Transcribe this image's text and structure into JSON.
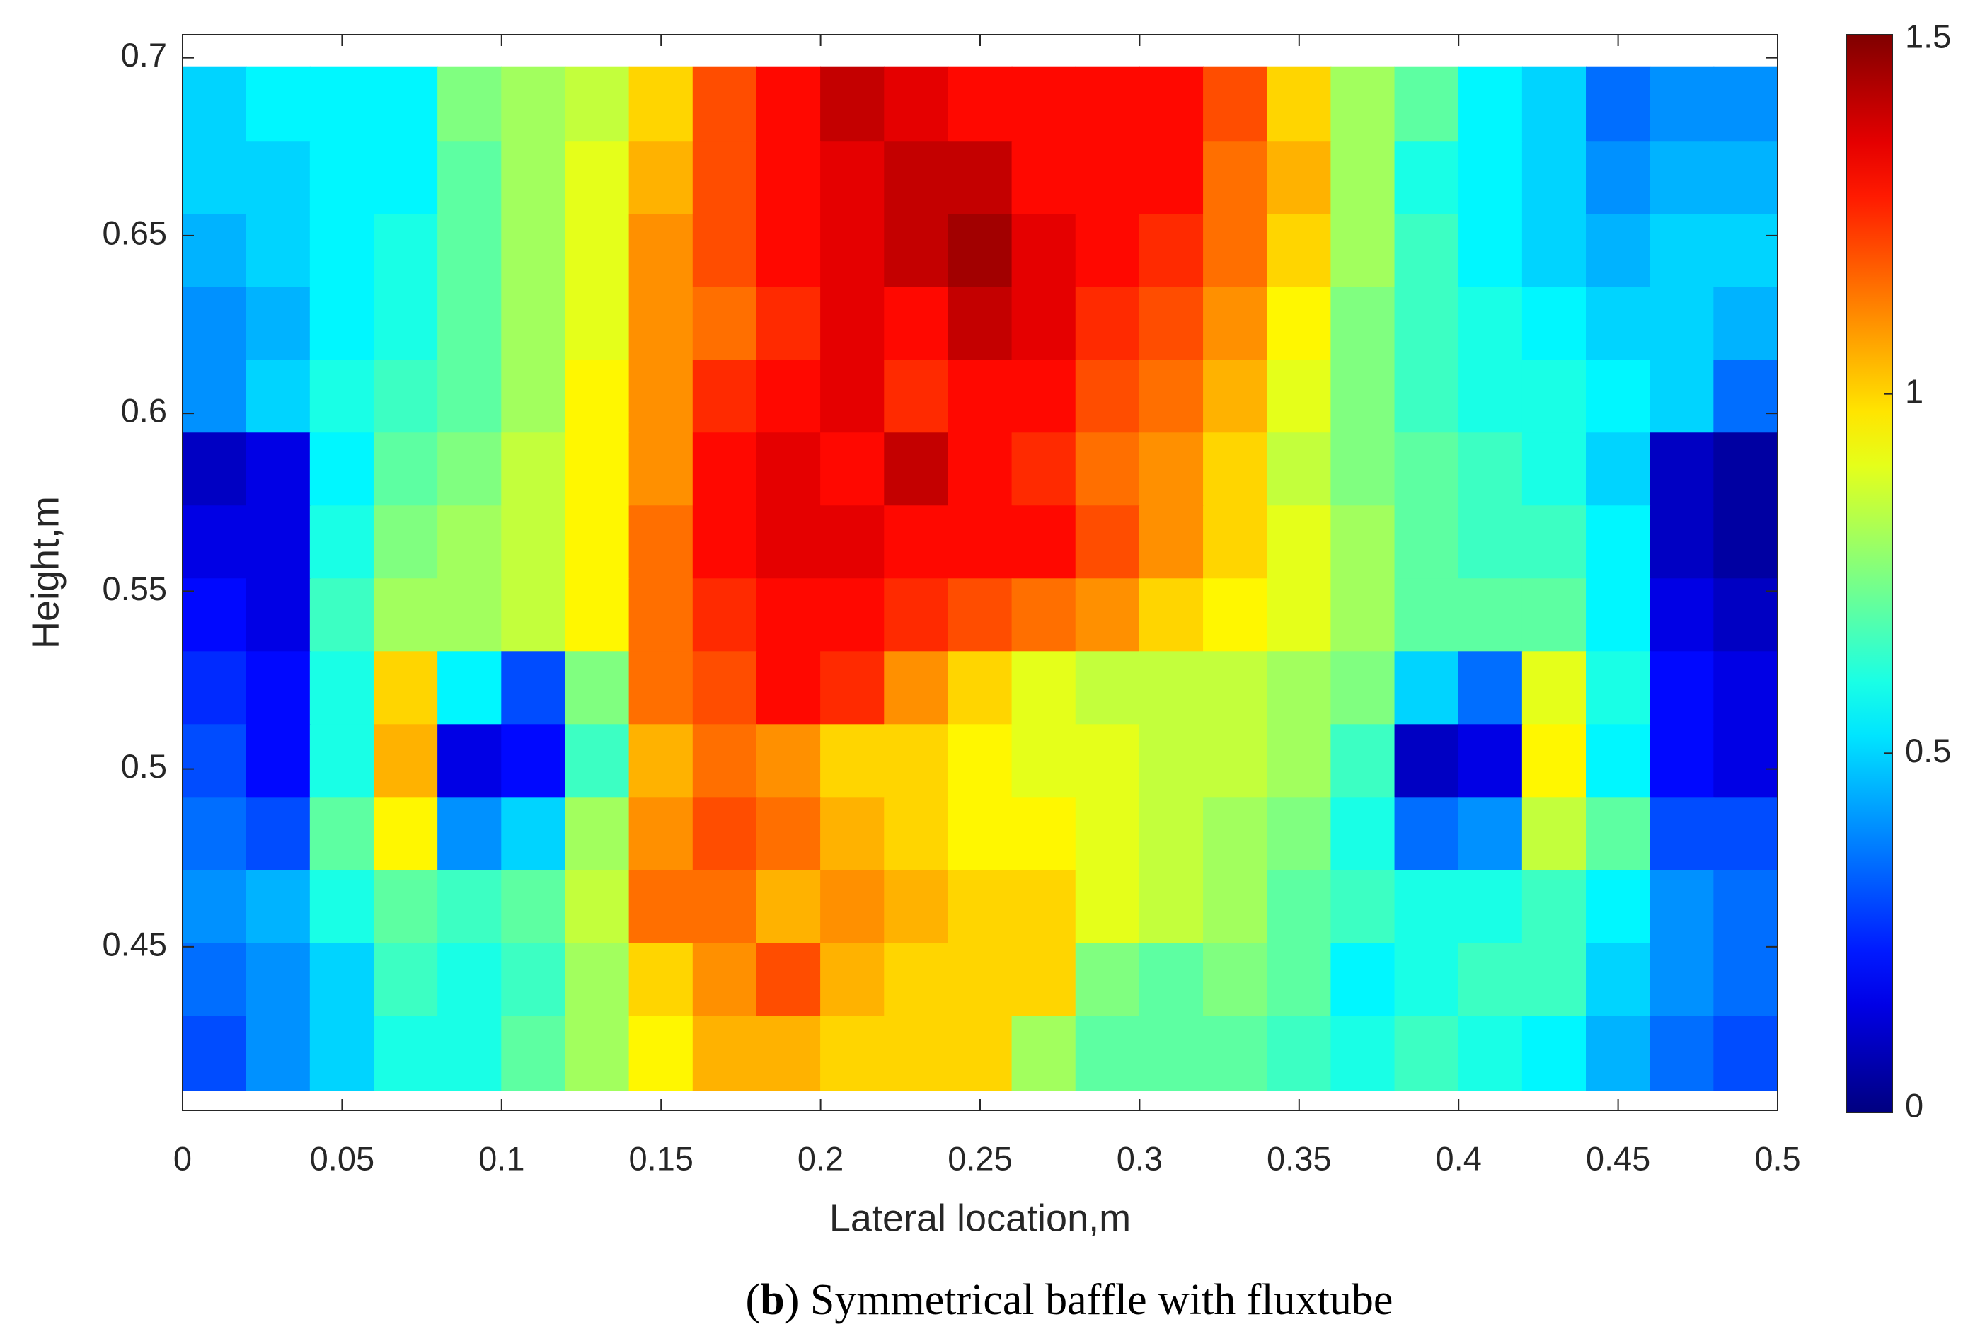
{
  "chart_data": {
    "type": "contour",
    "caption": [
      "(",
      "b",
      ") Symmetrical baffle with fluxtube"
    ],
    "x_label": "Lateral location,m",
    "y_label": "Height,m",
    "xlim": [
      0,
      0.5
    ],
    "ylim": [
      0.404,
      0.7065
    ],
    "xticks": [
      0,
      0.05,
      0.1,
      0.15,
      0.2,
      0.25,
      0.3,
      0.35,
      0.4,
      0.45,
      0.5
    ],
    "yticks": [
      0.45,
      0.5,
      0.55,
      0.6,
      0.65,
      0.7
    ],
    "colormap": "jet",
    "clim": [
      0,
      1.5
    ],
    "cticks": [
      0,
      0.5,
      1,
      1.5
    ],
    "x": [
      0.01,
      0.03,
      0.05,
      0.07,
      0.09,
      0.11,
      0.13,
      0.15,
      0.17,
      0.19,
      0.21,
      0.23,
      0.25,
      0.27,
      0.29,
      0.31,
      0.33,
      0.35,
      0.37,
      0.39,
      0.41,
      0.43,
      0.45,
      0.47,
      0.49
    ],
    "y": [
      0.687,
      0.666,
      0.646,
      0.625,
      0.605,
      0.584,
      0.564,
      0.543,
      0.523,
      0.502,
      0.482,
      0.461,
      0.441,
      0.42
    ],
    "z": [
      [
        0.5,
        0.55,
        0.55,
        0.55,
        0.75,
        0.8,
        0.85,
        1.0,
        1.2,
        1.3,
        1.4,
        1.35,
        1.3,
        1.3,
        1.3,
        1.3,
        1.2,
        1.0,
        0.8,
        0.7,
        0.55,
        0.5,
        0.35,
        0.4,
        0.4
      ],
      [
        0.5,
        0.5,
        0.55,
        0.55,
        0.7,
        0.8,
        0.9,
        1.05,
        1.2,
        1.3,
        1.35,
        1.4,
        1.4,
        1.3,
        1.3,
        1.3,
        1.15,
        1.05,
        0.8,
        0.6,
        0.55,
        0.5,
        0.4,
        0.45,
        0.45
      ],
      [
        0.45,
        0.5,
        0.55,
        0.6,
        0.7,
        0.8,
        0.9,
        1.1,
        1.2,
        1.3,
        1.35,
        1.4,
        1.45,
        1.35,
        1.3,
        1.25,
        1.15,
        1.0,
        0.8,
        0.65,
        0.55,
        0.5,
        0.45,
        0.5,
        0.5
      ],
      [
        0.4,
        0.45,
        0.55,
        0.6,
        0.7,
        0.8,
        0.9,
        1.1,
        1.15,
        1.25,
        1.35,
        1.3,
        1.4,
        1.35,
        1.25,
        1.2,
        1.1,
        0.95,
        0.75,
        0.65,
        0.6,
        0.55,
        0.5,
        0.5,
        0.45
      ],
      [
        0.4,
        0.5,
        0.6,
        0.65,
        0.7,
        0.8,
        0.95,
        1.1,
        1.25,
        1.3,
        1.35,
        1.25,
        1.3,
        1.3,
        1.2,
        1.15,
        1.05,
        0.9,
        0.75,
        0.65,
        0.6,
        0.6,
        0.55,
        0.5,
        0.35
      ],
      [
        0.1,
        0.15,
        0.55,
        0.7,
        0.75,
        0.85,
        0.95,
        1.1,
        1.3,
        1.35,
        1.3,
        1.4,
        1.3,
        1.25,
        1.15,
        1.1,
        1.0,
        0.85,
        0.75,
        0.7,
        0.65,
        0.6,
        0.5,
        0.1,
        0.05
      ],
      [
        0.15,
        0.15,
        0.6,
        0.75,
        0.8,
        0.85,
        0.95,
        1.15,
        1.3,
        1.35,
        1.35,
        1.3,
        1.3,
        1.3,
        1.2,
        1.1,
        1.0,
        0.9,
        0.8,
        0.7,
        0.65,
        0.65,
        0.55,
        0.1,
        0.05
      ],
      [
        0.2,
        0.15,
        0.65,
        0.8,
        0.8,
        0.85,
        0.95,
        1.15,
        1.25,
        1.3,
        1.3,
        1.25,
        1.2,
        1.15,
        1.1,
        1.0,
        0.95,
        0.9,
        0.8,
        0.7,
        0.7,
        0.7,
        0.55,
        0.15,
        0.1
      ],
      [
        0.25,
        0.2,
        0.6,
        1.0,
        0.55,
        0.3,
        0.75,
        1.15,
        1.2,
        1.3,
        1.25,
        1.1,
        1.0,
        0.9,
        0.85,
        0.85,
        0.85,
        0.8,
        0.75,
        0.5,
        0.35,
        0.9,
        0.6,
        0.2,
        0.15
      ],
      [
        0.3,
        0.2,
        0.6,
        1.05,
        0.15,
        0.2,
        0.65,
        1.05,
        1.15,
        1.1,
        1.0,
        1.0,
        0.95,
        0.9,
        0.9,
        0.85,
        0.85,
        0.8,
        0.65,
        0.1,
        0.15,
        0.95,
        0.55,
        0.2,
        0.15
      ],
      [
        0.35,
        0.3,
        0.7,
        0.95,
        0.4,
        0.5,
        0.8,
        1.1,
        1.2,
        1.15,
        1.05,
        1.0,
        0.95,
        0.95,
        0.9,
        0.85,
        0.8,
        0.75,
        0.6,
        0.35,
        0.4,
        0.85,
        0.7,
        0.3,
        0.3
      ],
      [
        0.4,
        0.45,
        0.6,
        0.7,
        0.65,
        0.7,
        0.85,
        1.15,
        1.15,
        1.05,
        1.1,
        1.05,
        1.0,
        1.0,
        0.9,
        0.85,
        0.8,
        0.7,
        0.65,
        0.6,
        0.6,
        0.65,
        0.55,
        0.4,
        0.35
      ],
      [
        0.35,
        0.4,
        0.5,
        0.65,
        0.6,
        0.65,
        0.8,
        1.0,
        1.1,
        1.2,
        1.05,
        1.0,
        1.0,
        1.0,
        0.75,
        0.7,
        0.75,
        0.7,
        0.55,
        0.6,
        0.65,
        0.65,
        0.5,
        0.4,
        0.35
      ],
      [
        0.3,
        0.4,
        0.5,
        0.6,
        0.6,
        0.7,
        0.8,
        0.95,
        1.05,
        1.05,
        1.0,
        1.0,
        1.0,
        0.8,
        0.7,
        0.7,
        0.7,
        0.65,
        0.6,
        0.65,
        0.6,
        0.55,
        0.45,
        0.35,
        0.3
      ]
    ]
  }
}
